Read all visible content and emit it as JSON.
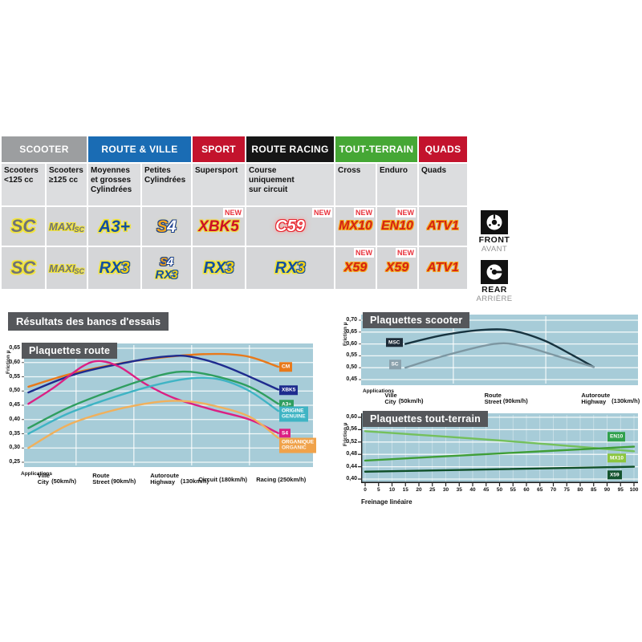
{
  "page": {
    "section_title": "Résultats des bancs d'essais"
  },
  "table": {
    "new_label": "NEW",
    "groups": [
      {
        "label": "SCOOTER",
        "color": "#9c9ea0",
        "cols": 2
      },
      {
        "label": "ROUTE & VILLE",
        "color": "#1a6cb4",
        "cols": 2
      },
      {
        "label": "SPORT",
        "color": "#c3132d",
        "cols": 1
      },
      {
        "label": "ROUTE RACING",
        "color": "#161616",
        "cols": 1
      },
      {
        "label": "TOUT-TERRAIN",
        "color": "#45a735",
        "cols": 2
      },
      {
        "label": "QUADS",
        "color": "#c3132d",
        "cols": 1
      }
    ],
    "subheaders": [
      "Scooters\n<125 cc",
      "Scooters\n≥125 cc",
      "Moyennes\net grosses\nCylindrées",
      "Petites\nCylindrées",
      "Supersport",
      "Course\nuniquement\nsur circuit",
      "Cross",
      "Enduro",
      "Quads"
    ],
    "rows": {
      "front": [
        {
          "logos": [
            [
              {
                "t": "SC",
                "s": "sc"
              }
            ]
          ]
        },
        {
          "logos": [
            [
              {
                "t": "MAXI",
                "s": "maxi"
              },
              {
                "t": "SC",
                "s": "maxisub"
              }
            ]
          ]
        },
        {
          "logos": [
            [
              {
                "t": "A3+",
                "s": "blue"
              }
            ]
          ]
        },
        {
          "logos": [
            [
              {
                "t": "S",
                "s": "s4s"
              },
              {
                "t": "4",
                "s": "s4n"
              }
            ]
          ]
        },
        {
          "logos": [
            [
              {
                "t": "XBK5",
                "s": "red"
              }
            ]
          ],
          "new": true
        },
        {
          "logos": [
            [
              {
                "t": "C59",
                "s": "c59"
              }
            ]
          ],
          "new": true
        },
        {
          "logos": [
            [
              {
                "t": "MX10",
                "s": "redout"
              }
            ]
          ],
          "new": true
        },
        {
          "logos": [
            [
              {
                "t": "EN10",
                "s": "redout"
              }
            ]
          ],
          "new": true
        },
        {
          "logos": [
            [
              {
                "t": "ATV1",
                "s": "redout"
              }
            ]
          ]
        }
      ],
      "rear": [
        {
          "logos": [
            [
              {
                "t": "SC",
                "s": "sc"
              }
            ]
          ]
        },
        {
          "logos": [
            [
              {
                "t": "MAXI",
                "s": "maxi"
              },
              {
                "t": "SC",
                "s": "maxisub"
              }
            ]
          ]
        },
        {
          "logos": [
            [
              {
                "t": "RX",
                "s": "rx"
              },
              {
                "t": "3",
                "s": "x3"
              }
            ]
          ]
        },
        {
          "logos": [
            [
              {
                "t": "S",
                "s": "s4s-sm"
              },
              {
                "t": "4",
                "s": "s4n-sm"
              }
            ],
            [
              {
                "t": "RX",
                "s": "rx-sm"
              },
              {
                "t": "3",
                "s": "x3-sm"
              }
            ]
          ]
        },
        {
          "logos": [
            [
              {
                "t": "RX",
                "s": "rx"
              },
              {
                "t": "3",
                "s": "x3"
              }
            ]
          ]
        },
        {
          "logos": [
            [
              {
                "t": "RX",
                "s": "rx"
              },
              {
                "t": "3",
                "s": "x3"
              }
            ]
          ]
        },
        {
          "logos": [
            [
              {
                "t": "X59",
                "s": "redout"
              }
            ]
          ],
          "new": true
        },
        {
          "logos": [
            [
              {
                "t": "X59",
                "s": "redout"
              }
            ]
          ],
          "new": true
        },
        {
          "logos": [
            [
              {
                "t": "ATV1",
                "s": "redout"
              }
            ]
          ]
        }
      ]
    }
  },
  "front_rear": {
    "front": {
      "label": "FRONT",
      "sub": "AVANT"
    },
    "rear": {
      "label": "REAR",
      "sub": "ARRIÈRE"
    }
  },
  "chart_data": [
    {
      "type": "line",
      "title": "Plaquettes route",
      "ylabel": "Friction µ",
      "applications_label": "Applications",
      "ylim": [
        0.25,
        0.65
      ],
      "grid": true,
      "legend_position": "right",
      "yticks": [
        [
          "0,65",
          0.65
        ],
        [
          "0,60",
          0.6
        ],
        [
          "0,55",
          0.55
        ],
        [
          "0,50",
          0.5
        ],
        [
          "0,45",
          0.45
        ],
        [
          "0,40",
          0.4
        ],
        [
          "0,35",
          0.35
        ],
        [
          "0,30",
          0.3
        ],
        [
          "0,25",
          0.25
        ]
      ],
      "grid_vertical_x": [
        18,
        38,
        58,
        78
      ],
      "categories": [
        {
          "fr": "Ville",
          "en": "City",
          "speed": "(50km/h)",
          "x": 8
        },
        {
          "fr": "Route",
          "en": "Street",
          "speed": "(90km/h)",
          "x": 27
        },
        {
          "fr": "Autoroute",
          "en": "Highway",
          "speed": "(130km/h)",
          "x": 47
        },
        {
          "fr": "Circuit",
          "en": "",
          "speed": "(180km/h)",
          "x": 67
        },
        {
          "fr": "Racing",
          "en": "",
          "speed": "(250km/h)",
          "x": 87
        }
      ],
      "series": [
        {
          "name": "CM",
          "color": "#e8791a",
          "points": [
            [
              1.5,
              0.515
            ],
            [
              18,
              0.565
            ],
            [
              38,
              0.605
            ],
            [
              55,
              0.625
            ],
            [
              68,
              0.63
            ],
            [
              78,
              0.62
            ],
            [
              88,
              0.585
            ]
          ]
        },
        {
          "name": "XBK5",
          "color": "#1e2b8e",
          "points": [
            [
              1.5,
              0.495
            ],
            [
              18,
              0.56
            ],
            [
              38,
              0.605
            ],
            [
              50,
              0.622
            ],
            [
              58,
              0.62
            ],
            [
              70,
              0.585
            ],
            [
              88,
              0.505
            ]
          ]
        },
        {
          "name": "S4",
          "color": "#db1f83",
          "points": [
            [
              1.5,
              0.455
            ],
            [
              10,
              0.51
            ],
            [
              20,
              0.585
            ],
            [
              26,
              0.605
            ],
            [
              33,
              0.585
            ],
            [
              42,
              0.525
            ],
            [
              52,
              0.475
            ],
            [
              65,
              0.435
            ],
            [
              78,
              0.4
            ],
            [
              88,
              0.352
            ]
          ]
        },
        {
          "name": "A3+",
          "color": "#2f9e5f",
          "points": [
            [
              1.5,
              0.37
            ],
            [
              15,
              0.44
            ],
            [
              30,
              0.5
            ],
            [
              45,
              0.55
            ],
            [
              55,
              0.568
            ],
            [
              65,
              0.555
            ],
            [
              78,
              0.515
            ],
            [
              88,
              0.455
            ]
          ]
        },
        {
          "name": "ORIGINE / GENUINE",
          "color": "#3fb4c4",
          "points": [
            [
              1.5,
              0.35
            ],
            [
              15,
              0.42
            ],
            [
              30,
              0.475
            ],
            [
              45,
              0.52
            ],
            [
              58,
              0.545
            ],
            [
              68,
              0.54
            ],
            [
              78,
              0.5
            ],
            [
              88,
              0.43
            ]
          ]
        },
        {
          "name": "ORGANIQUE / ORGANIC",
          "color": "#f0b05c",
          "points": [
            [
              1.5,
              0.3
            ],
            [
              15,
              0.38
            ],
            [
              30,
              0.43
            ],
            [
              45,
              0.46
            ],
            [
              55,
              0.465
            ],
            [
              65,
              0.45
            ],
            [
              78,
              0.41
            ],
            [
              88,
              0.335
            ]
          ]
        }
      ],
      "badges": [
        {
          "label": "CM",
          "bg": "#e8791a",
          "v": 0.585
        },
        {
          "label": "XBK5",
          "bg": "#1e2b8e",
          "v": 0.503
        },
        {
          "label": "A3+",
          "bg": "#2f9e5f",
          "v": 0.452
        },
        {
          "label": "ORIGINE|GENUINE",
          "bg": "#3fb4c4",
          "v": 0.42
        },
        {
          "label": "S4",
          "bg": "#db1f83",
          "v": 0.352
        },
        {
          "label": "ORGANIQUE|ORGANIC",
          "bg": "#f0a24a",
          "v": 0.31
        }
      ]
    },
    {
      "type": "line",
      "title": "Plaquettes scooter",
      "ylabel": "Friction µ",
      "applications_label": "Applications",
      "ylim": [
        0.45,
        0.7
      ],
      "grid": true,
      "legend_position": "left-on-lines",
      "yticks": [
        [
          "0,70",
          0.7
        ],
        [
          "0,65",
          0.65
        ],
        [
          "0,60",
          0.6
        ],
        [
          "0,55",
          0.55
        ],
        [
          "0,50",
          0.5
        ],
        [
          "0,45",
          0.45
        ]
      ],
      "grid_vertical_x": [
        33.3,
        66.7
      ],
      "categories": [
        {
          "fr": "Ville",
          "en": "City",
          "speed": "(50km/h)",
          "x": 12
        },
        {
          "fr": "Route",
          "en": "Street",
          "speed": "(90km/h)",
          "x": 48
        },
        {
          "fr": "Autoroute",
          "en": "Highway",
          "speed": "(130km/h)",
          "x": 83
        }
      ],
      "series": [
        {
          "name": "MSC",
          "color": "#17333f",
          "points": [
            [
              16,
              0.6
            ],
            [
              30,
              0.638
            ],
            [
              45,
              0.66
            ],
            [
              55,
              0.655
            ],
            [
              66,
              0.615
            ],
            [
              76,
              0.555
            ],
            [
              84,
              0.503
            ]
          ]
        },
        {
          "name": "SC",
          "color": "#7d97a2",
          "points": [
            [
              16,
              0.5
            ],
            [
              30,
              0.55
            ],
            [
              48,
              0.6
            ],
            [
              58,
              0.592
            ],
            [
              70,
              0.552
            ],
            [
              84,
              0.503
            ]
          ]
        }
      ],
      "badges": [
        {
          "label": "MSC",
          "bg": "#1d2b38",
          "v": 0.607,
          "x": 9
        },
        {
          "label": "SC",
          "bg": "#8ba1ac",
          "v": 0.514,
          "x": 10
        }
      ]
    },
    {
      "type": "line",
      "title": "Plaquettes tout-terrain",
      "ylabel": "Friction µ",
      "xlabel": "Freinage linéaire",
      "ylim": [
        0.4,
        0.6
      ],
      "grid": true,
      "legend_position": "right",
      "yticks": [
        [
          "0,60",
          0.6
        ],
        [
          "0,56",
          0.56
        ],
        [
          "0,52",
          0.52
        ],
        [
          "0,48",
          0.48
        ],
        [
          "0,44",
          0.44
        ],
        [
          "0,40",
          0.4
        ]
      ],
      "xticks": [
        0,
        5,
        10,
        15,
        20,
        25,
        30,
        35,
        40,
        45,
        50,
        55,
        60,
        65,
        70,
        75,
        80,
        85,
        90,
        95,
        100
      ],
      "series": [
        {
          "name": "EN10",
          "color": "#74c05c",
          "points": [
            [
              0,
              0.555
            ],
            [
              50,
              0.525
            ],
            [
              100,
              0.49
            ]
          ]
        },
        {
          "name": "MX10",
          "color": "#3f9e37",
          "points": [
            [
              0,
              0.46
            ],
            [
              50,
              0.483
            ],
            [
              100,
              0.505
            ]
          ]
        },
        {
          "name": "X59",
          "color": "#0f4f28",
          "points": [
            [
              0,
              0.424
            ],
            [
              100,
              0.44
            ]
          ]
        }
      ],
      "badges": [
        {
          "label": "EN10",
          "bg": "#2fa04c",
          "v": 0.537
        },
        {
          "label": "MX10",
          "bg": "#8cc63f",
          "v": 0.468
        },
        {
          "label": "X59",
          "bg": "#14532e",
          "v": 0.413
        }
      ]
    }
  ]
}
